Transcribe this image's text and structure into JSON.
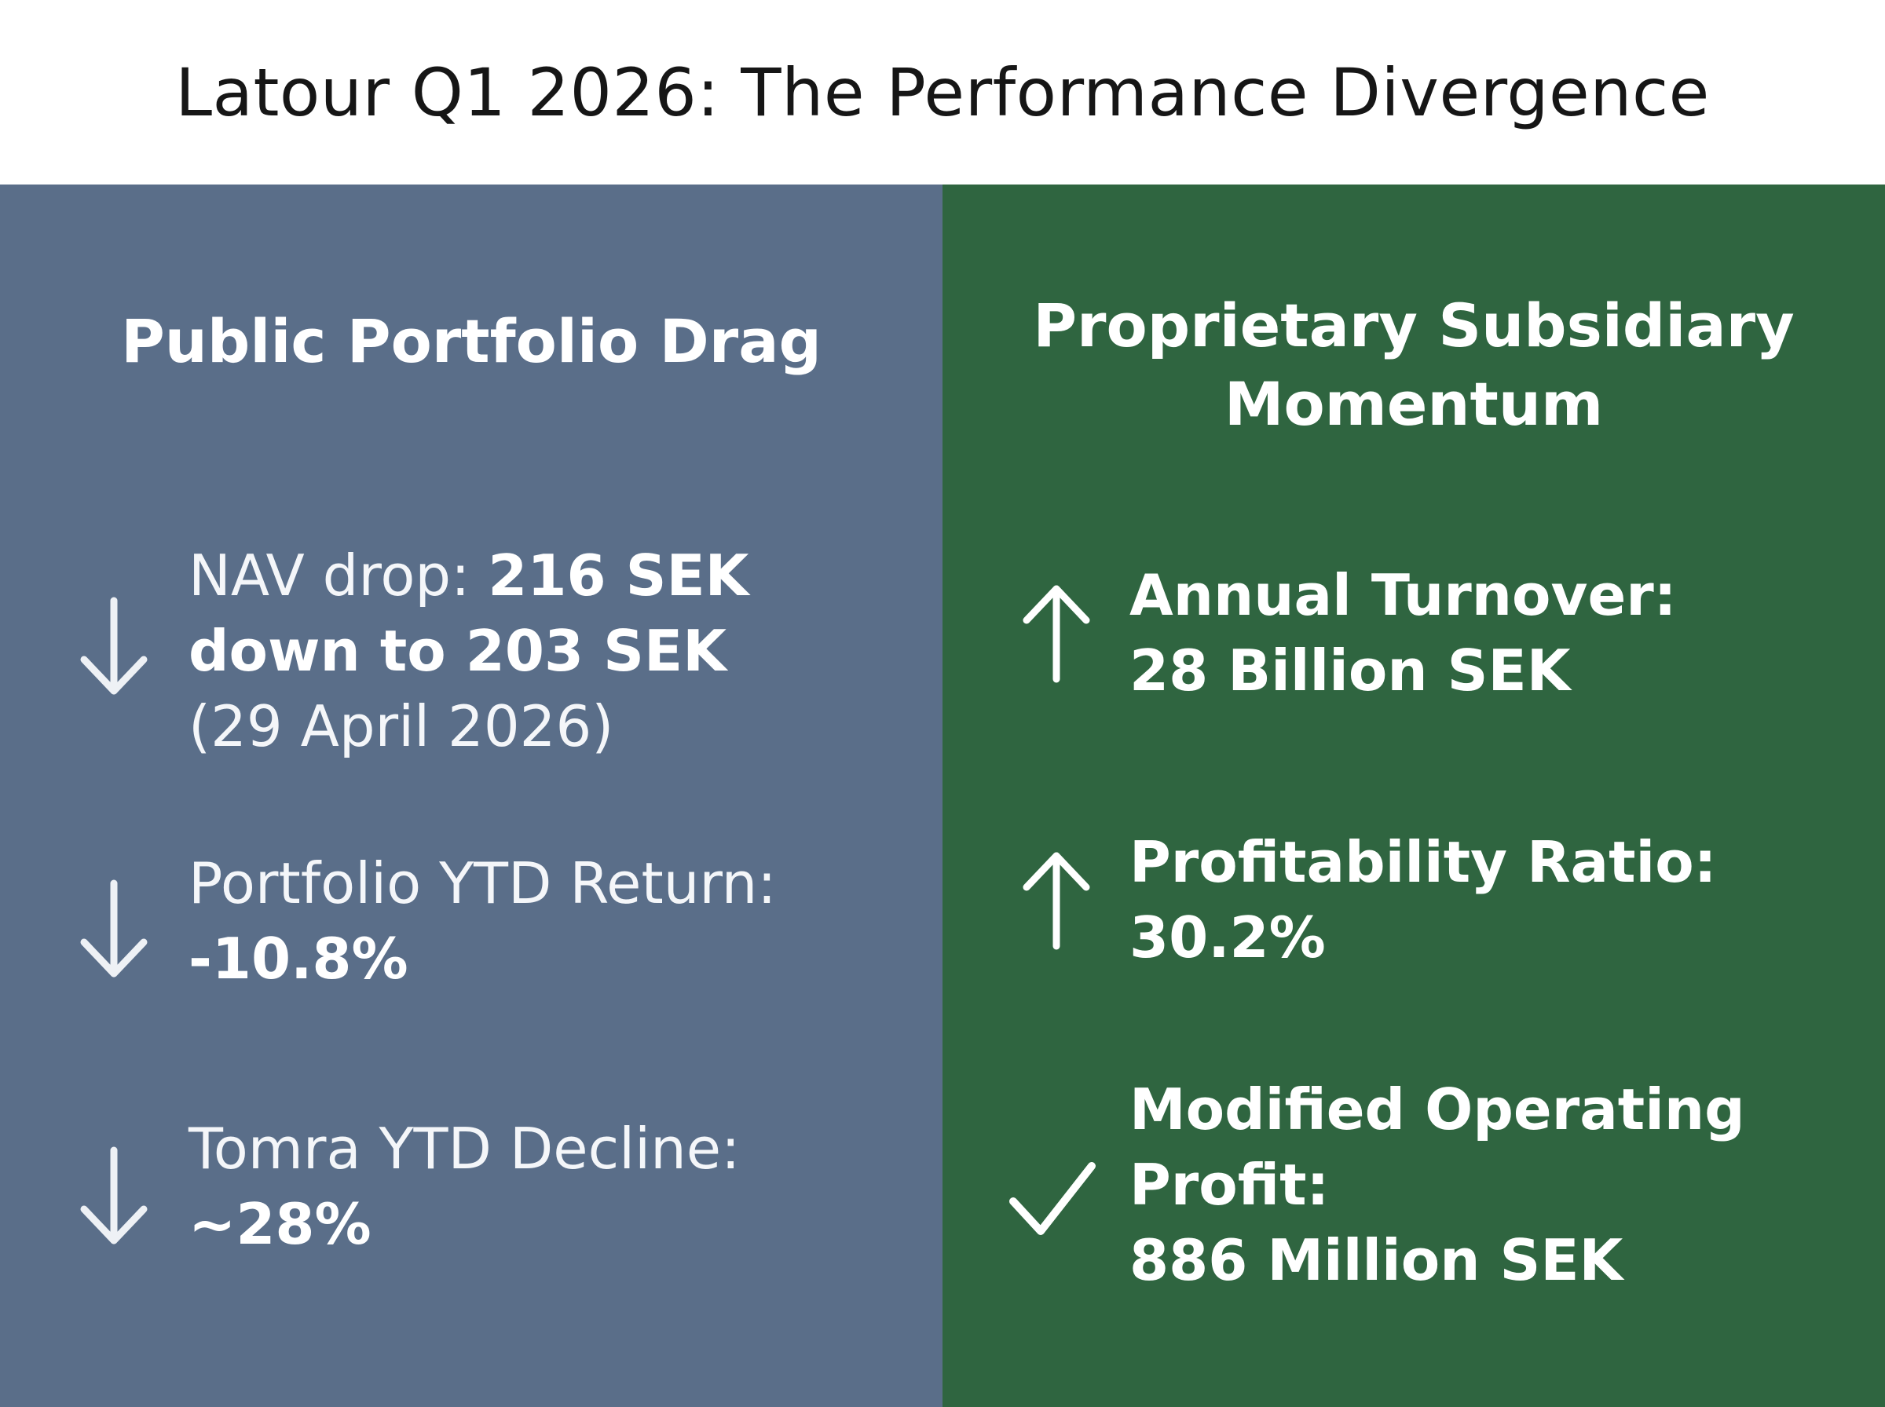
{
  "title": "Latour Q1 2026: The Performance Divergence",
  "left_panel": {
    "heading": "Public Portfolio Drag",
    "color": "#5a6e89",
    "items": [
      {
        "icon": "arrow-down-icon",
        "label": "NAV drop: ",
        "value_1": "216 SEK",
        "value_2": "down to 203 SEK",
        "note": "(29 April 2026)"
      },
      {
        "icon": "arrow-down-icon",
        "label": "Portfolio YTD Return:",
        "value": "-10.8%"
      },
      {
        "icon": "arrow-down-icon",
        "label": "Tomra YTD Decline:",
        "value": "~28%"
      }
    ]
  },
  "right_panel": {
    "heading_line1": "Proprietary Subsidiary",
    "heading_line2": "Momentum",
    "color": "#2f6540",
    "items": [
      {
        "icon": "arrow-up-icon",
        "label": "Annual Turnover:",
        "value": "28 Billion SEK"
      },
      {
        "icon": "arrow-up-icon",
        "label": "Profitability Ratio:",
        "value": "30.2%"
      },
      {
        "icon": "checkmark-icon",
        "label_line1": "Modified Operating",
        "label_line2": "Profit:",
        "value": "886 Million SEK"
      }
    ]
  }
}
